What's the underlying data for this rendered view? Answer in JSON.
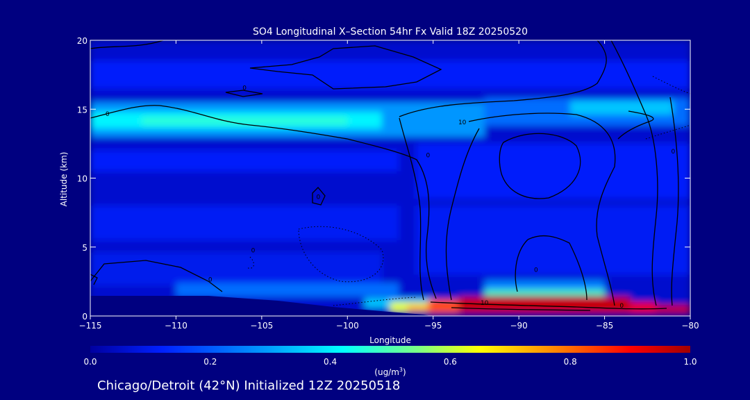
{
  "chart_data": {
    "type": "heatmap",
    "title": "SO4 Longitudinal X–Section 54hr  Fx Valid 18Z 20250520",
    "subtitle": "Chicago/Detroit (42°N) Initialized 12Z 20250518",
    "xlabel": "Longitude",
    "ylabel": "Altitude (km)",
    "x_ticks": [
      -115,
      -110,
      -105,
      -100,
      -95,
      -90,
      -85,
      -80
    ],
    "x_tick_labels": [
      "−115",
      "−110",
      "−105",
      "−100",
      "−95",
      "−90",
      "−85",
      "−80"
    ],
    "y_ticks": [
      0,
      5,
      10,
      15,
      20
    ],
    "y_tick_labels": [
      "0",
      "5",
      "10",
      "15",
      "20"
    ],
    "xlim": [
      -115,
      -80
    ],
    "ylim": [
      0,
      20
    ],
    "colorbar": {
      "min": 0.0,
      "max": 1.0,
      "ticks": [
        0.0,
        0.2,
        0.4,
        0.6,
        0.8,
        1.0
      ],
      "tick_labels": [
        "0.0",
        "0.2",
        "0.4",
        "0.6",
        "0.8",
        "1.0"
      ],
      "units_label": "(ug/m",
      "units_superscript": "3",
      "units_close": ")",
      "colors": [
        "#0000a0",
        "#0020ff",
        "#00a0ff",
        "#00ffff",
        "#80ff80",
        "#ffff00",
        "#ff8000",
        "#ff0000",
        "#a00000"
      ]
    },
    "contour_labels": [
      {
        "text": "0",
        "lon": -114.0,
        "alt": 14.5
      },
      {
        "text": "0",
        "lon": -106.0,
        "alt": 16.4
      },
      {
        "text": "10",
        "lon": -93.3,
        "alt": 13.9
      },
      {
        "text": "0",
        "lon": -95.3,
        "alt": 11.5
      },
      {
        "text": "0",
        "lon": -101.7,
        "alt": 8.5
      },
      {
        "text": "0",
        "lon": -105.5,
        "alt": 4.6
      },
      {
        "text": "0",
        "lon": -108.0,
        "alt": 2.5
      },
      {
        "text": "0",
        "lon": -89.0,
        "alt": 3.2
      },
      {
        "text": "10",
        "lon": -92.0,
        "alt": 0.8
      },
      {
        "text": "0",
        "lon": -84.0,
        "alt": 0.6
      },
      {
        "text": "0",
        "lon": -81.0,
        "alt": 11.8
      }
    ],
    "field_cells": [
      {
        "lon0": -115,
        "lon1": -80,
        "alt0": 0,
        "alt1": 20,
        "value": 0.06
      },
      {
        "lon0": -115,
        "lon1": -80,
        "alt0": 16.5,
        "alt1": 18.5,
        "value": 0.12
      },
      {
        "lon0": -115,
        "lon1": -92,
        "alt0": 13.0,
        "alt1": 15.5,
        "value": 0.24
      },
      {
        "lon0": -115,
        "lon1": -98,
        "alt0": 13.6,
        "alt1": 14.8,
        "value": 0.36
      },
      {
        "lon0": -112,
        "lon1": -100,
        "alt0": 13.9,
        "alt1": 14.4,
        "value": 0.42
      },
      {
        "lon0": -92,
        "lon1": -80,
        "alt0": 13.8,
        "alt1": 15.8,
        "value": 0.2
      },
      {
        "lon0": -87,
        "lon1": -81,
        "alt0": 14.6,
        "alt1": 15.6,
        "value": 0.3
      },
      {
        "lon0": -115,
        "lon1": -97,
        "alt0": 10.5,
        "alt1": 12.0,
        "value": 0.12
      },
      {
        "lon0": -115,
        "lon1": -97,
        "alt0": 5.5,
        "alt1": 8.0,
        "value": 0.11
      },
      {
        "lon0": -96,
        "lon1": -80,
        "alt0": 8.5,
        "alt1": 12.5,
        "value": 0.12
      },
      {
        "lon0": -96,
        "lon1": -80,
        "alt0": 3.0,
        "alt1": 8.0,
        "value": 0.11
      },
      {
        "lon0": -115,
        "lon1": -98,
        "alt0": 2.2,
        "alt1": 4.6,
        "value": 0.1
      },
      {
        "lon0": -110,
        "lon1": -97,
        "alt0": 1.4,
        "alt1": 2.4,
        "value": 0.2
      },
      {
        "lon0": -92,
        "lon1": -85,
        "alt0": 1.8,
        "alt1": 2.6,
        "value": 0.22
      },
      {
        "lon0": -92,
        "lon1": -85,
        "alt0": 1.5,
        "alt1": 1.9,
        "value": 0.45
      },
      {
        "lon0": -99,
        "lon1": -95,
        "alt0": 0.6,
        "alt1": 1.3,
        "value": 0.3
      },
      {
        "lon0": -97.5,
        "lon1": -95.3,
        "alt0": 0.3,
        "alt1": 1.0,
        "value": 0.6
      },
      {
        "lon0": -96.5,
        "lon1": -95.0,
        "alt0": 0.3,
        "alt1": 0.8,
        "value": 0.7
      },
      {
        "lon0": -95.3,
        "lon1": -93.5,
        "alt0": 0.2,
        "alt1": 1.2,
        "value": 0.8
      },
      {
        "lon0": -93.5,
        "lon1": -83.5,
        "alt0": 0.2,
        "alt1": 1.4,
        "value": 0.95
      },
      {
        "lon0": -83.5,
        "lon1": -82.0,
        "alt0": 0.2,
        "alt1": 1.0,
        "value": 0.9
      },
      {
        "lon0": -82.0,
        "lon1": -80,
        "alt0": 0.2,
        "alt1": 0.8,
        "value": 0.95
      }
    ]
  }
}
